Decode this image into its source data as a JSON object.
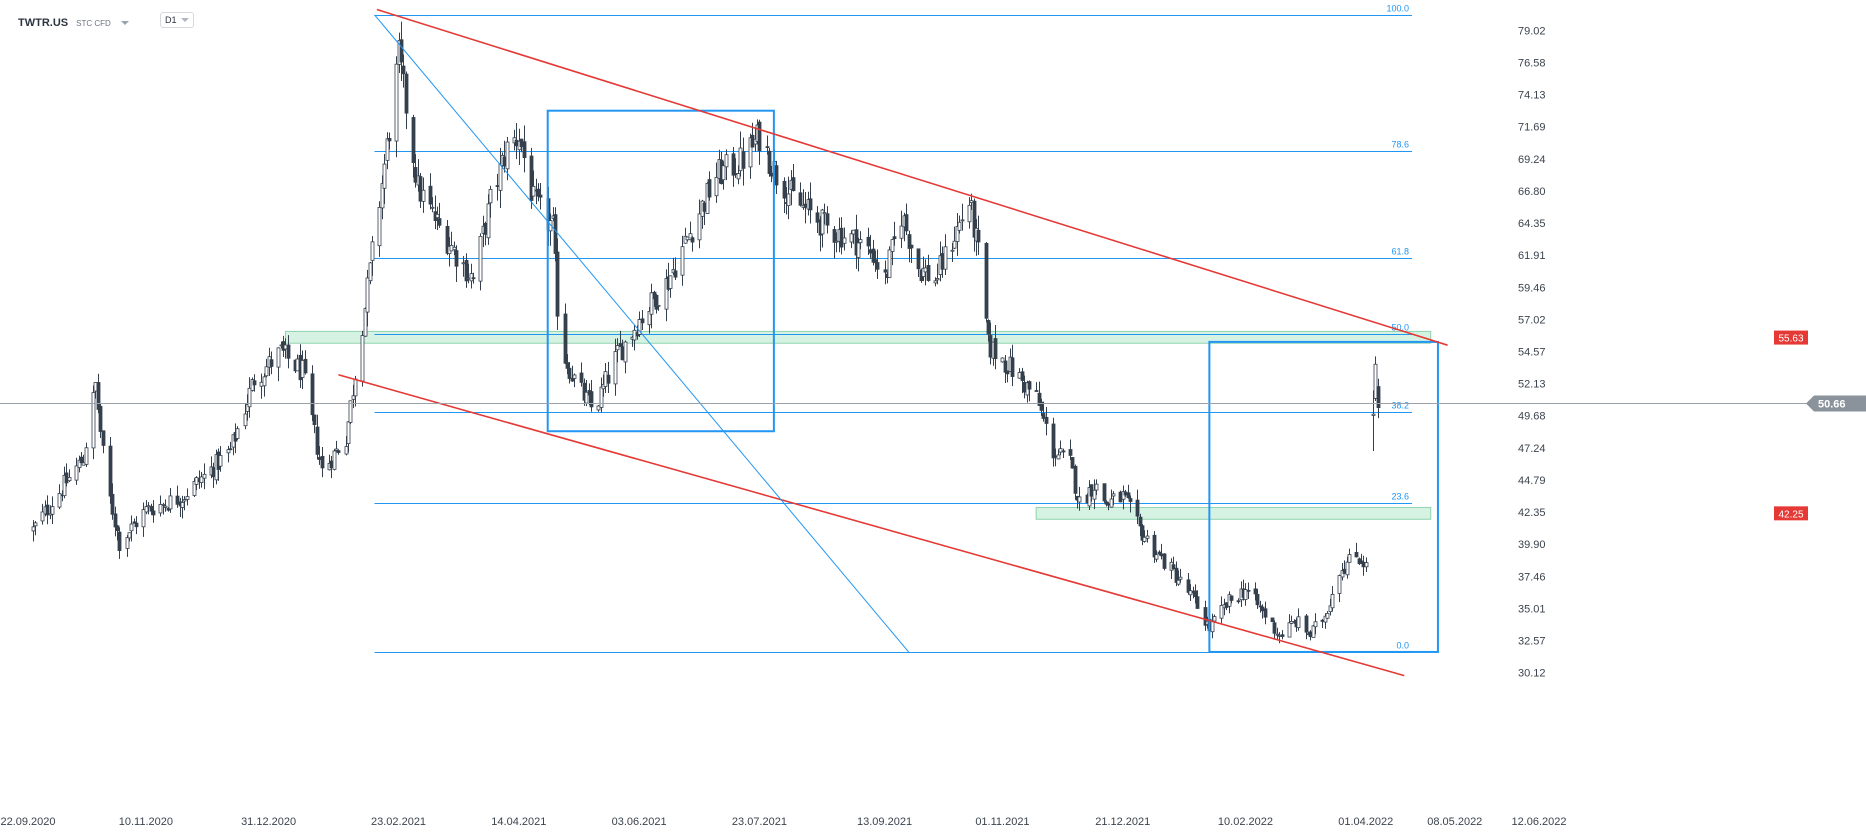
{
  "toolbar": {
    "symbol": "TWTR.US",
    "type": "STC CFD",
    "timeframe": "D1"
  },
  "colors": {
    "fib": "#2196f3",
    "trend": "#e53935",
    "zone_fill": "#d6f2e2",
    "zone_border": "#8fd3ae",
    "candle_up": "#ffffff",
    "candle_down": "#34404d",
    "axis_text": "#3b434d",
    "current_badge": "#8a939c",
    "level_badge": "#e53935"
  },
  "chart_data": {
    "type": "candlestick",
    "title": "",
    "xlabel": "",
    "ylabel": "",
    "ylim": [
      29.7,
      81.5
    ],
    "x_axis_ticks": [
      "22.09.2020",
      "10.11.2020",
      "31.12.2020",
      "23.02.2021",
      "14.04.2021",
      "03.06.2021",
      "23.07.2021",
      "13.09.2021",
      "01.11.2021",
      "21.12.2021",
      "10.02.2022",
      "01.04.2022",
      "08.05.2022",
      "12.06.2022"
    ],
    "y_axis_ticks": [
      "79.02",
      "76.58",
      "74.13",
      "71.69",
      "69.24",
      "66.80",
      "64.35",
      "61.91",
      "59.46",
      "57.02",
      "54.57",
      "52.13",
      "49.68",
      "47.24",
      "44.79",
      "42.35",
      "39.90",
      "37.46",
      "35.01",
      "32.57",
      "30.12"
    ],
    "current_price": {
      "label": "50.66",
      "value": 50.66
    },
    "price_levels": [
      {
        "label": "55.63",
        "value": 55.63
      },
      {
        "label": "42.25",
        "value": 42.25
      }
    ],
    "fibonacci": [
      {
        "label": "100.0",
        "value": 80.2
      },
      {
        "label": "78.6",
        "value": 69.8
      },
      {
        "label": "61.8",
        "value": 61.7
      },
      {
        "label": "50.0",
        "value": 55.9
      },
      {
        "label": "38.2",
        "value": 50.0
      },
      {
        "label": "23.6",
        "value": 43.0
      },
      {
        "label": "0.0",
        "value": 31.7
      }
    ],
    "zones": [
      {
        "name": "upper-zone",
        "x_start": "07.01.2021",
        "x_end": "28.04.2022",
        "y_low": 55.2,
        "y_high": 56.1
      },
      {
        "name": "lower-zone",
        "x_start": "15.11.2021",
        "x_end": "28.04.2022",
        "y_low": 41.8,
        "y_high": 42.7
      }
    ],
    "trendlines": [
      {
        "name": "upper-trend",
        "color": "red",
        "from": {
          "x": "14.02.2021",
          "y": 80.6
        },
        "to": {
          "x": "05.05.2022",
          "y": 55.05
        }
      },
      {
        "name": "lower-trend",
        "color": "red",
        "from": {
          "x": "29.01.2021",
          "y": 52.8
        },
        "to": {
          "x": "17.04.2022",
          "y": 29.9
        }
      },
      {
        "name": "fib-diagonal",
        "color": "blue",
        "from": {
          "x": "13.02.2021",
          "y": 80.2
        },
        "to": {
          "x": "23.09.2021",
          "y": 31.7
        }
      }
    ],
    "rectangles": [
      {
        "name": "range-box-2021",
        "x_start": "26.04.2021",
        "x_end": "29.07.2021",
        "y_low": 48.5,
        "y_high": 72.9
      },
      {
        "name": "range-box-2022",
        "x_start": "26.01.2022",
        "x_end": "01.05.2022",
        "y_low": 31.7,
        "y_high": 55.3
      }
    ],
    "anchors": [
      {
        "date": "24.09.2020",
        "close": 41.0
      },
      {
        "date": "15.10.2020",
        "close": 46.5
      },
      {
        "date": "20.10.2020",
        "close": 52.0
      },
      {
        "date": "24.10.2020",
        "close": 45.0
      },
      {
        "date": "30.10.2020",
        "close": 40.0
      },
      {
        "date": "10.11.2020",
        "close": 42.5
      },
      {
        "date": "25.11.2020",
        "close": 43.5
      },
      {
        "date": "15.12.2020",
        "close": 47.0
      },
      {
        "date": "25.12.2020",
        "close": 52.5
      },
      {
        "date": "05.01.2021",
        "close": 54.5
      },
      {
        "date": "14.01.2021",
        "close": 53.0
      },
      {
        "date": "22.01.2021",
        "close": 45.5
      },
      {
        "date": "01.02.2021",
        "close": 48.0
      },
      {
        "date": "09.02.2021",
        "close": 58.0
      },
      {
        "date": "15.02.2021",
        "close": 66.0
      },
      {
        "date": "23.02.2021",
        "close": 77.0
      },
      {
        "date": "03.03.2021",
        "close": 67.0
      },
      {
        "date": "12.03.2021",
        "close": 64.0
      },
      {
        "date": "19.03.2021",
        "close": 62.0
      },
      {
        "date": "26.03.2021",
        "close": 60.0
      },
      {
        "date": "02.04.2021",
        "close": 66.0
      },
      {
        "date": "09.04.2021",
        "close": 70.0
      },
      {
        "date": "14.04.2021",
        "close": 71.0
      },
      {
        "date": "20.04.2021",
        "close": 66.0
      },
      {
        "date": "28.04.2021",
        "close": 64.0
      },
      {
        "date": "01.05.2021",
        "close": 55.0
      },
      {
        "date": "08.05.2021",
        "close": 52.0
      },
      {
        "date": "15.05.2021",
        "close": 50.0
      },
      {
        "date": "24.05.2021",
        "close": 54.0
      },
      {
        "date": "03.06.2021",
        "close": 57.0
      },
      {
        "date": "15.06.2021",
        "close": 60.0
      },
      {
        "date": "25.06.2021",
        "close": 64.0
      },
      {
        "date": "05.07.2021",
        "close": 68.0
      },
      {
        "date": "15.07.2021",
        "close": 69.0
      },
      {
        "date": "23.07.2021",
        "close": 71.0
      },
      {
        "date": "30.07.2021",
        "close": 68.0
      },
      {
        "date": "07.08.2021",
        "close": 66.0
      },
      {
        "date": "20.08.2021",
        "close": 64.0
      },
      {
        "date": "01.09.2021",
        "close": 63.0
      },
      {
        "date": "08.09.2021",
        "close": 62.0
      },
      {
        "date": "13.09.2021",
        "close": 60.0
      },
      {
        "date": "20.09.2021",
        "close": 65.0
      },
      {
        "date": "27.09.2021",
        "close": 61.0
      },
      {
        "date": "04.10.2021",
        "close": 60.0
      },
      {
        "date": "11.10.2021",
        "close": 63.0
      },
      {
        "date": "18.10.2021",
        "close": 66.0
      },
      {
        "date": "22.10.2021",
        "close": 62.0
      },
      {
        "date": "26.10.2021",
        "close": 55.0
      },
      {
        "date": "01.11.2021",
        "close": 54.0
      },
      {
        "date": "15.11.2021",
        "close": 51.0
      },
      {
        "date": "22.11.2021",
        "close": 47.0
      },
      {
        "date": "29.11.2021",
        "close": 46.0
      },
      {
        "date": "03.12.2021",
        "close": 43.0
      },
      {
        "date": "09.12.2021",
        "close": 44.5
      },
      {
        "date": "14.12.2021",
        "close": 43.0
      },
      {
        "date": "21.12.2021",
        "close": 43.5
      },
      {
        "date": "28.12.2021",
        "close": 41.0
      },
      {
        "date": "05.01.2022",
        "close": 39.0
      },
      {
        "date": "12.01.2022",
        "close": 37.5
      },
      {
        "date": "20.01.2022",
        "close": 35.5
      },
      {
        "date": "26.01.2022",
        "close": 33.5
      },
      {
        "date": "03.02.2022",
        "close": 35.5
      },
      {
        "date": "10.02.2022",
        "close": 36.5
      },
      {
        "date": "18.02.2022",
        "close": 34.5
      },
      {
        "date": "24.02.2022",
        "close": 33.0
      },
      {
        "date": "03.03.2022",
        "close": 34.0
      },
      {
        "date": "09.03.2022",
        "close": 33.0
      },
      {
        "date": "15.03.2022",
        "close": 34.5
      },
      {
        "date": "21.03.2022",
        "close": 38.0
      },
      {
        "date": "28.03.2022",
        "close": 39.0
      },
      {
        "date": "01.04.2022",
        "close": 38.5
      }
    ],
    "gap_candles": [
      {
        "date": "04.04.2022",
        "open": 49.7,
        "high": 51.6,
        "low": 47.0,
        "close": 49.8
      },
      {
        "date": "05.04.2022",
        "open": 51.0,
        "high": 54.2,
        "low": 50.8,
        "close": 53.6
      },
      {
        "date": "06.04.2022",
        "open": 51.9,
        "high": 52.5,
        "low": 49.5,
        "close": 50.3
      }
    ]
  }
}
